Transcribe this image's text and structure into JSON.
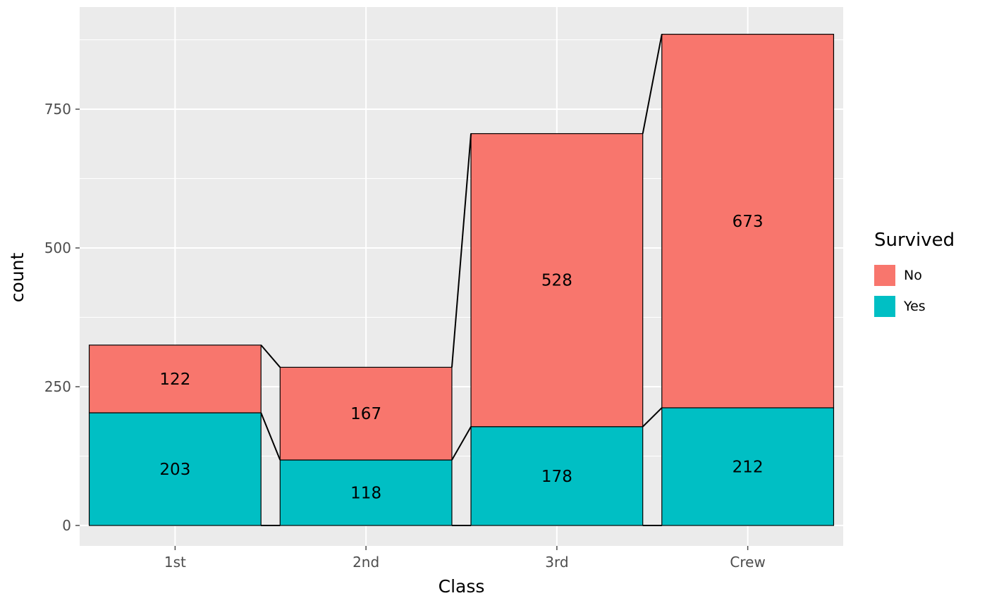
{
  "chart_data": {
    "type": "bar",
    "variant": "stacked",
    "title": "",
    "xlabel": "Class",
    "ylabel": "count",
    "categories": [
      "1st",
      "2nd",
      "3rd",
      "Crew"
    ],
    "series": [
      {
        "name": "Yes",
        "color": "#00BFC4",
        "values": [
          203,
          118,
          178,
          212
        ]
      },
      {
        "name": "No",
        "color": "#F8766D",
        "values": [
          122,
          167,
          528,
          673
        ]
      }
    ],
    "value_labels": true,
    "yticks": [
      0,
      250,
      500,
      750
    ],
    "ylim": [
      0,
      930
    ],
    "grid": true,
    "connectors": true,
    "legend": {
      "title": "Survived",
      "position": "right",
      "entries": [
        {
          "label": "No",
          "color": "#F8766D"
        },
        {
          "label": "Yes",
          "color": "#00BFC4"
        }
      ]
    }
  },
  "style": {
    "panel_bg": "#EBEBEB",
    "grid_major_color": "#FFFFFF",
    "grid_minor_color": "#FFFFFF",
    "axis_text_color": "#4D4D4D",
    "axis_title_color": "#000000",
    "bar_outline_color": "#000000",
    "value_label_color": "#000000"
  }
}
